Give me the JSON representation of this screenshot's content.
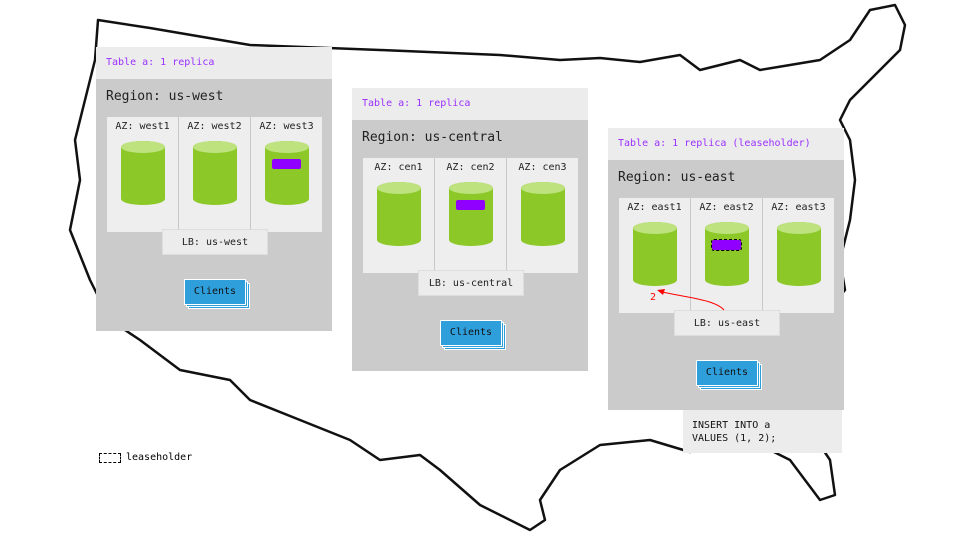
{
  "regions": [
    {
      "table_label": "Table a: 1 replica",
      "region": "Region: us-west",
      "azs": [
        "AZ: west1",
        "AZ: west2",
        "AZ: west3"
      ],
      "replica_az": 2,
      "leaseholder": false,
      "lb": "LB: us-west",
      "clients": "Clients"
    },
    {
      "table_label": "Table a: 1 replica",
      "region": "Region: us-central",
      "azs": [
        "AZ: cen1",
        "AZ: cen2",
        "AZ: cen3"
      ],
      "replica_az": 1,
      "leaseholder": false,
      "lb": "LB: us-central",
      "clients": "Clients"
    },
    {
      "table_label": "Table a: 1 replica (leaseholder)",
      "region": "Region: us-east",
      "azs": [
        "AZ: east1",
        "AZ: east2",
        "AZ: east3"
      ],
      "replica_az": 1,
      "leaseholder": true,
      "lb": "LB: us-east",
      "clients": "Clients"
    }
  ],
  "arrow_label": "2",
  "sql": "INSERT INTO a\nVALUES (1, 2);",
  "legend": "leaseholder",
  "colors": {
    "replica": "#9000ff",
    "node": "#8cc928",
    "clients": "#2f9fdc",
    "arrow": "#ff0000"
  }
}
